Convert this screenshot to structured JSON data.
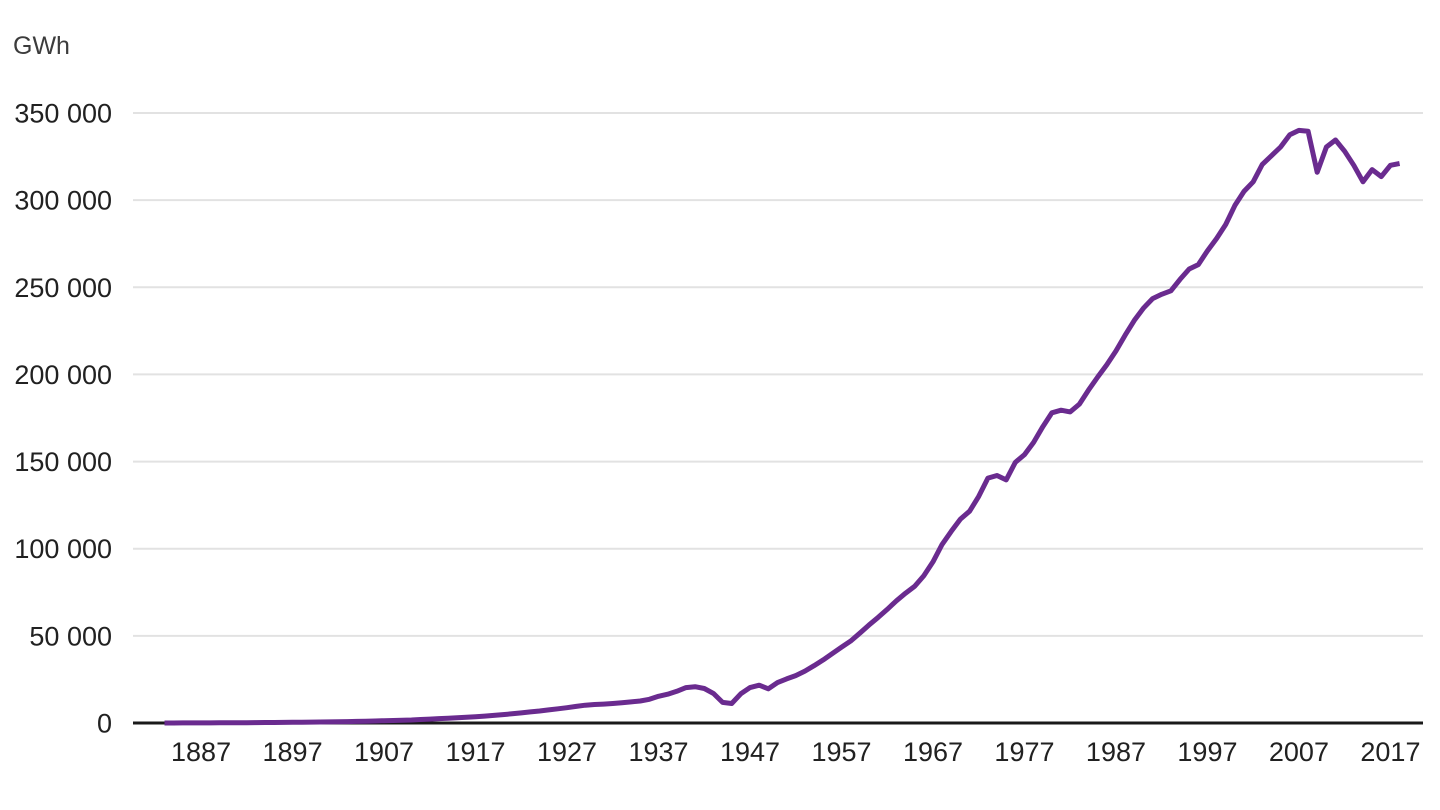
{
  "chart_data": {
    "type": "line",
    "title": "",
    "ylabel": "GWh",
    "xlabel": "",
    "ylim": [
      0,
      350000
    ],
    "xlim": [
      1883,
      2018
    ],
    "grid": "horizontal",
    "legend": "none",
    "colors": {
      "line": "#6a2b8f",
      "grid": "#e2e2e2",
      "axis": "#1a1a1a",
      "tick_text": "#212121",
      "unit_text": "#3c3c3c",
      "background": "#ffffff"
    },
    "y_ticks": [
      {
        "value": 0,
        "label": "0"
      },
      {
        "value": 50000,
        "label": "50 000"
      },
      {
        "value": 100000,
        "label": "100 000"
      },
      {
        "value": 150000,
        "label": "150 000"
      },
      {
        "value": 200000,
        "label": "200 000"
      },
      {
        "value": 250000,
        "label": "250 000"
      },
      {
        "value": 300000,
        "label": "300 000"
      },
      {
        "value": 350000,
        "label": "350 000"
      }
    ],
    "x_ticks": [
      1887,
      1897,
      1907,
      1917,
      1927,
      1937,
      1947,
      1957,
      1967,
      1977,
      1987,
      1997,
      2007,
      2017
    ],
    "series": [
      {
        "name": "GWh",
        "years": [
          1883,
          1884,
          1885,
          1886,
          1887,
          1888,
          1889,
          1890,
          1891,
          1892,
          1893,
          1894,
          1895,
          1896,
          1897,
          1898,
          1899,
          1900,
          1901,
          1902,
          1903,
          1904,
          1905,
          1906,
          1907,
          1908,
          1909,
          1910,
          1911,
          1912,
          1913,
          1914,
          1915,
          1916,
          1917,
          1918,
          1919,
          1920,
          1921,
          1922,
          1923,
          1924,
          1925,
          1926,
          1927,
          1928,
          1929,
          1930,
          1931,
          1932,
          1933,
          1934,
          1935,
          1936,
          1937,
          1938,
          1939,
          1940,
          1941,
          1942,
          1943,
          1944,
          1945,
          1946,
          1947,
          1948,
          1949,
          1950,
          1951,
          1952,
          1953,
          1954,
          1955,
          1956,
          1957,
          1958,
          1959,
          1960,
          1961,
          1962,
          1963,
          1964,
          1965,
          1966,
          1967,
          1968,
          1969,
          1970,
          1971,
          1972,
          1973,
          1974,
          1975,
          1976,
          1977,
          1978,
          1979,
          1980,
          1981,
          1982,
          1983,
          1984,
          1985,
          1986,
          1987,
          1988,
          1989,
          1990,
          1991,
          1992,
          1993,
          1994,
          1995,
          1996,
          1997,
          1998,
          1999,
          2000,
          2001,
          2002,
          2003,
          2004,
          2005,
          2006,
          2007,
          2008,
          2009,
          2010,
          2011,
          2012,
          2013,
          2014,
          2015,
          2016,
          2017,
          2018
        ],
        "values": [
          10,
          20,
          35,
          50,
          65,
          85,
          105,
          130,
          160,
          195,
          230,
          265,
          305,
          350,
          400,
          460,
          520,
          580,
          650,
          730,
          810,
          900,
          1000,
          1150,
          1300,
          1450,
          1600,
          1750,
          2000,
          2250,
          2500,
          2750,
          3000,
          3300,
          3600,
          3950,
          4350,
          4800,
          5300,
          5800,
          6350,
          6900,
          7500,
          8150,
          8800,
          9500,
          10200,
          10600,
          10850,
          11200,
          11600,
          12100,
          12600,
          13600,
          15300,
          16500,
          18200,
          20300,
          20800,
          19800,
          17000,
          11800,
          11200,
          16800,
          20300,
          21700,
          19600,
          23200,
          25300,
          27200,
          29800,
          32900,
          36200,
          39800,
          43500,
          47000,
          51500,
          56200,
          60600,
          65200,
          70100,
          74500,
          78500,
          84500,
          92500,
          102500,
          110000,
          117000,
          121500,
          130000,
          140500,
          142000,
          139500,
          149500,
          154000,
          161000,
          170000,
          178000,
          179500,
          178500,
          183000,
          191000,
          198500,
          205500,
          213500,
          222500,
          231000,
          238000,
          243500,
          246000,
          248000,
          254500,
          260500,
          263000,
          271000,
          278000,
          286000,
          297000,
          305000,
          310500,
          320500,
          325500,
          330500,
          337500,
          340000,
          339500,
          316000,
          330500,
          334500,
          328000,
          320000,
          310500,
          317500,
          313500,
          320000,
          321000
        ]
      }
    ]
  }
}
